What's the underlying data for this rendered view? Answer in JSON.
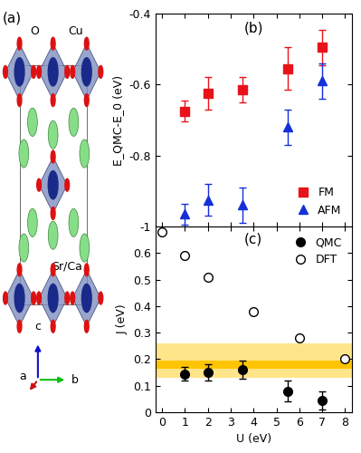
{
  "chart_data": [
    {
      "type": "scatter",
      "annotations": [
        "(b)"
      ],
      "ylabel": "E_QMC-E_0 (eV)",
      "xlim": [
        -0.3,
        8.3
      ],
      "xticks": [
        0,
        1,
        2,
        3,
        4,
        5,
        6,
        7,
        8
      ],
      "ylim": [
        -1,
        -0.4
      ],
      "yticks": [
        -1,
        -0.8,
        -0.6,
        -0.4
      ],
      "tick_labels": "y",
      "legend": "lower right",
      "series": [
        {
          "name": "FM",
          "color": "#e8131a",
          "marker": "square",
          "x": [
            1,
            2,
            3.5,
            5.5,
            7
          ],
          "values": [
            -0.675,
            -0.625,
            -0.615,
            -0.555,
            -0.495
          ],
          "errors": [
            0.03,
            0.045,
            0.035,
            0.06,
            0.05
          ]
        },
        {
          "name": "AFM",
          "color": "#1530d8",
          "marker": "triangle",
          "x": [
            1,
            2,
            3.5,
            5.5,
            7
          ],
          "values": [
            -0.965,
            -0.925,
            -0.94,
            -0.72,
            -0.59
          ],
          "errors": [
            0.03,
            0.045,
            0.05,
            0.05,
            0.05
          ]
        }
      ]
    },
    {
      "type": "scatter",
      "annotations": [
        "(c)"
      ],
      "xlabel": "U (eV)",
      "ylabel": "J (eV)",
      "xlim": [
        -0.3,
        8.3
      ],
      "xticks": [
        0,
        1,
        2,
        3,
        4,
        5,
        6,
        7,
        8
      ],
      "ylim": [
        0,
        0.7
      ],
      "yticks": [
        0,
        0.1,
        0.2,
        0.3,
        0.4,
        0.5,
        0.6
      ],
      "legend": "upper right",
      "bands": [
        {
          "lo": 0.13,
          "hi": 0.26,
          "color": "#ffe58a"
        },
        {
          "lo": 0.165,
          "hi": 0.195,
          "color": "#ffc400"
        }
      ],
      "series": [
        {
          "name": "QMC",
          "color": "#000000",
          "marker": "circle",
          "x": [
            1,
            2,
            3.5,
            5.5,
            7
          ],
          "values": [
            0.145,
            0.15,
            0.16,
            0.08,
            0.045
          ],
          "errors": [
            0.025,
            0.03,
            0.035,
            0.04,
            0.035
          ]
        },
        {
          "name": "DFT",
          "color": "#000000",
          "marker": "hollow_circle",
          "x": [
            0,
            1,
            2,
            4,
            6,
            8
          ],
          "values": [
            0.68,
            0.59,
            0.51,
            0.38,
            0.28,
            0.2
          ]
        }
      ]
    }
  ],
  "structure": {
    "label": "(a)",
    "atoms": {
      "oxygen": "O",
      "copper": "Cu",
      "cation": "Sr/Ca"
    },
    "axes": {
      "a": "a",
      "b": "b",
      "c": "c"
    }
  }
}
